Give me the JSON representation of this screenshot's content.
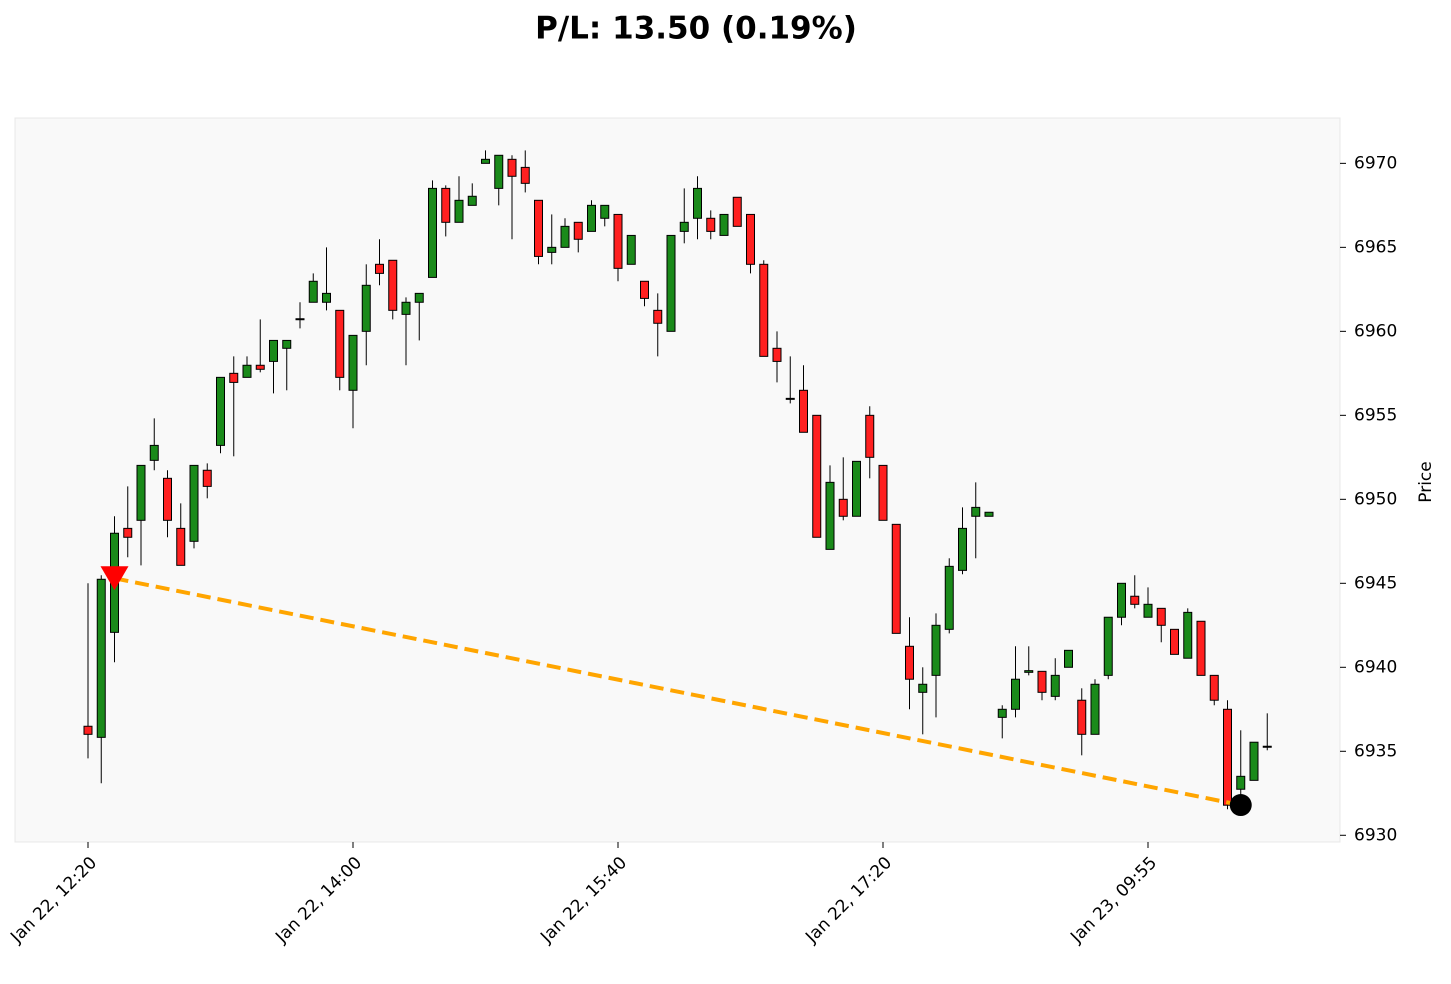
{
  "chart_data": {
    "type": "candlestick",
    "title": "P/L: 13.50 (0.19%)",
    "y_label": "Price",
    "categories": [
      "Jan 22, 12:20",
      null,
      null,
      null,
      null,
      null,
      null,
      null,
      null,
      null,
      null,
      null,
      null,
      null,
      null,
      null,
      null,
      null,
      null,
      null,
      "Jan 22, 14:00",
      null,
      null,
      null,
      null,
      null,
      null,
      null,
      null,
      null,
      null,
      null,
      null,
      null,
      null,
      null,
      null,
      null,
      null,
      null,
      "Jan 22, 15:40",
      null,
      null,
      null,
      null,
      null,
      null,
      null,
      null,
      null,
      null,
      null,
      null,
      null,
      null,
      null,
      null,
      null,
      null,
      null,
      "Jan 22, 17:20",
      null,
      null,
      null,
      null,
      null,
      null,
      null,
      null,
      null,
      null,
      null,
      null,
      null,
      null,
      null,
      null,
      null,
      null,
      null,
      "Jan 23, 09:55",
      null,
      null,
      null,
      null,
      null,
      null,
      null,
      null,
      null
    ],
    "open": [
      6936.49,
      6935.83,
      6942.08,
      6948.27,
      6948.75,
      6952.32,
      6951.25,
      6948.27,
      6947.5,
      6951.73,
      6953.21,
      6957.5,
      6957.26,
      6957.98,
      6958.21,
      6958.99,
      6960.7,
      6961.73,
      6961.73,
      6961.25,
      6956.49,
      6960.0,
      6963.99,
      6964.23,
      6961.01,
      6961.73,
      6963.21,
      6968.51,
      6966.49,
      6967.5,
      6970.0,
      6968.51,
      6970.24,
      6969.76,
      6967.8,
      6964.7,
      6965.0,
      6966.49,
      6965.95,
      6966.73,
      6966.96,
      6963.99,
      6962.98,
      6961.25,
      6960.0,
      6965.95,
      6966.73,
      6966.73,
      6965.71,
      6967.98,
      6966.96,
      6963.99,
      6958.99,
      6956.01,
      6956.49,
      6955.0,
      6947.02,
      6950.0,
      6948.99,
      6955.0,
      6952.02,
      6948.51,
      6941.25,
      6938.51,
      6939.52,
      6942.26,
      6945.77,
      6948.99,
      6948.99,
      6937.02,
      6937.5,
      6939.7,
      6939.76,
      6938.27,
      6940.0,
      6938.04,
      6936.01,
      6939.52,
      6942.98,
      6944.23,
      6942.98,
      6943.51,
      6942.26,
      6940.54,
      6942.74,
      6939.52,
      6937.5,
      6932.74,
      6933.27,
      6935.24
    ],
    "high": [
      6945.0,
      6945.48,
      6948.99,
      6950.77,
      6952.02,
      6954.82,
      6951.73,
      6949.76,
      6952.02,
      6952.14,
      6957.26,
      6958.51,
      6958.51,
      6960.71,
      6959.46,
      6959.46,
      6961.73,
      6963.45,
      6965.0,
      6961.25,
      6959.76,
      6963.99,
      6965.48,
      6964.23,
      6962.02,
      6962.26,
      6968.99,
      6968.69,
      6969.23,
      6968.81,
      6970.77,
      6970.48,
      6970.48,
      6970.77,
      6967.8,
      6966.96,
      6966.73,
      6966.49,
      6967.8,
      6967.5,
      6966.96,
      6965.71,
      6962.98,
      6962.26,
      6965.71,
      6968.51,
      6969.23,
      6967.2,
      6966.96,
      6967.98,
      6966.96,
      6964.23,
      6960.0,
      6958.51,
      6957.98,
      6955.0,
      6952.02,
      6952.5,
      6952.26,
      6955.54,
      6952.02,
      6948.51,
      6942.98,
      6940.0,
      6943.21,
      6946.49,
      6949.52,
      6951.01,
      6949.23,
      6937.74,
      6941.25,
      6941.25,
      6939.76,
      6940.54,
      6941.01,
      6938.75,
      6939.29,
      6942.98,
      6945.0,
      6945.48,
      6944.76,
      6943.51,
      6942.26,
      6943.51,
      6942.74,
      6939.52,
      6938.04,
      6936.25,
      6935.54,
      6937.26
    ],
    "low": [
      6934.58,
      6933.1,
      6940.3,
      6946.55,
      6946.07,
      6951.73,
      6947.74,
      6946.07,
      6947.08,
      6950.06,
      6952.74,
      6952.56,
      6957.26,
      6957.56,
      6956.31,
      6956.49,
      6960.18,
      6961.73,
      6961.25,
      6956.49,
      6954.23,
      6957.98,
      6962.74,
      6960.71,
      6957.98,
      6959.46,
      6963.21,
      6965.65,
      6966.49,
      6967.5,
      6970.0,
      6967.5,
      6965.48,
      6968.27,
      6963.99,
      6963.99,
      6965.0,
      6964.7,
      6965.95,
      6966.25,
      6962.98,
      6963.99,
      6961.49,
      6958.51,
      6960.0,
      6965.24,
      6965.48,
      6965.48,
      6965.71,
      6966.25,
      6963.45,
      6958.51,
      6956.96,
      6955.71,
      6953.99,
      6947.74,
      6947.02,
      6948.75,
      6948.99,
      6951.25,
      6948.75,
      6942.02,
      6937.5,
      6936.01,
      6937.02,
      6942.02,
      6945.54,
      6946.49,
      6948.99,
      6935.77,
      6937.02,
      6939.52,
      6938.04,
      6938.04,
      6940.0,
      6934.76,
      6936.01,
      6939.29,
      6942.5,
      6943.51,
      6942.98,
      6941.49,
      6940.77,
      6940.54,
      6939.52,
      6937.74,
      6931.55,
      6932.26,
      6933.27,
      6935.06
    ],
    "close": [
      6936.01,
      6945.24,
      6947.98,
      6947.74,
      6952.02,
      6953.21,
      6948.75,
      6946.07,
      6952.02,
      6950.77,
      6957.26,
      6956.96,
      6957.98,
      6957.74,
      6959.46,
      6959.46,
      6960.75,
      6962.98,
      6962.26,
      6957.26,
      6959.76,
      6962.74,
      6963.45,
      6961.25,
      6961.73,
      6962.26,
      6968.51,
      6966.49,
      6967.8,
      6968.04,
      6970.24,
      6970.48,
      6969.23,
      6968.81,
      6964.46,
      6965.0,
      6966.25,
      6965.48,
      6967.5,
      6967.5,
      6963.75,
      6965.71,
      6961.96,
      6960.48,
      6965.71,
      6966.49,
      6968.51,
      6965.95,
      6966.96,
      6966.25,
      6963.99,
      6958.51,
      6958.21,
      6955.99,
      6953.99,
      6947.74,
      6951.01,
      6948.99,
      6952.26,
      6952.5,
      6948.75,
      6942.02,
      6939.29,
      6938.99,
      6942.5,
      6946.01,
      6948.27,
      6949.52,
      6949.23,
      6937.5,
      6939.29,
      6939.8,
      6938.51,
      6939.52,
      6941.01,
      6936.01,
      6938.99,
      6942.98,
      6945.0,
      6943.75,
      6943.75,
      6942.5,
      6940.77,
      6943.27,
      6939.52,
      6938.04,
      6931.79,
      6933.51,
      6935.54,
      6935.3
    ],
    "up_color": "#1a8a1a",
    "down_color": "#ff2020",
    "entry": {
      "x": 2,
      "price": 6945.3,
      "color": "#ff0000"
    },
    "exit": {
      "x": 87,
      "price": 6931.8,
      "color": "#000000"
    },
    "trade_line_color": "#ffa500",
    "ylim": [
      6929.6,
      6972.7
    ],
    "yticks": [
      6930,
      6935,
      6940,
      6945,
      6950,
      6955,
      6960,
      6965,
      6970
    ]
  }
}
